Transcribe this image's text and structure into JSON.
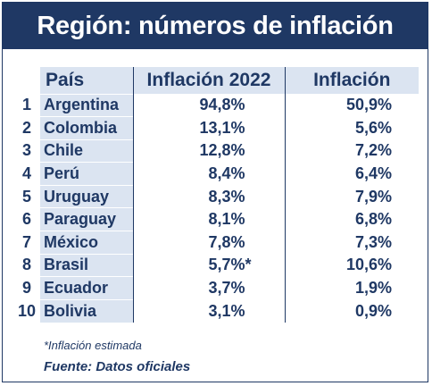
{
  "title": "Región: números de inflación",
  "table": {
    "headers": {
      "country": "País",
      "inflation_2022": "Inflación 2022",
      "inflation": "Inflación"
    },
    "rows": [
      {
        "rank": "1",
        "country": "Argentina",
        "inflation_2022": "94,8%",
        "mark": "",
        "inflation": "50,9%"
      },
      {
        "rank": "2",
        "country": "Colombia",
        "inflation_2022": "13,1%",
        "mark": "",
        "inflation": "5,6%"
      },
      {
        "rank": "3",
        "country": "Chile",
        "inflation_2022": "12,8%",
        "mark": "",
        "inflation": "7,2%"
      },
      {
        "rank": "4",
        "country": "Perú",
        "inflation_2022": "8,4%",
        "mark": "",
        "inflation": "6,4%"
      },
      {
        "rank": "5",
        "country": "Uruguay",
        "inflation_2022": "8,3%",
        "mark": "",
        "inflation": "7,9%"
      },
      {
        "rank": "6",
        "country": "Paraguay",
        "inflation_2022": "8,1%",
        "mark": "",
        "inflation": "6,8%"
      },
      {
        "rank": "7",
        "country": "México",
        "inflation_2022": "7,8%",
        "mark": "",
        "inflation": "7,3%"
      },
      {
        "rank": "8",
        "country": "Brasil",
        "inflation_2022": "5,7%",
        "mark": "*",
        "inflation": "10,6%"
      },
      {
        "rank": "9",
        "country": "Ecuador",
        "inflation_2022": "3,7%",
        "mark": "",
        "inflation": "1,9%"
      },
      {
        "rank": "10",
        "country": "Bolivia",
        "inflation_2022": "3,1%",
        "mark": "",
        "inflation": "0,9%"
      }
    ]
  },
  "footnote": "*Inflación estimada",
  "source": "Fuente: Datos oficiales",
  "colors": {
    "navy": "#1f3864",
    "light_blue": "#dbe4f1",
    "white": "#ffffff"
  }
}
